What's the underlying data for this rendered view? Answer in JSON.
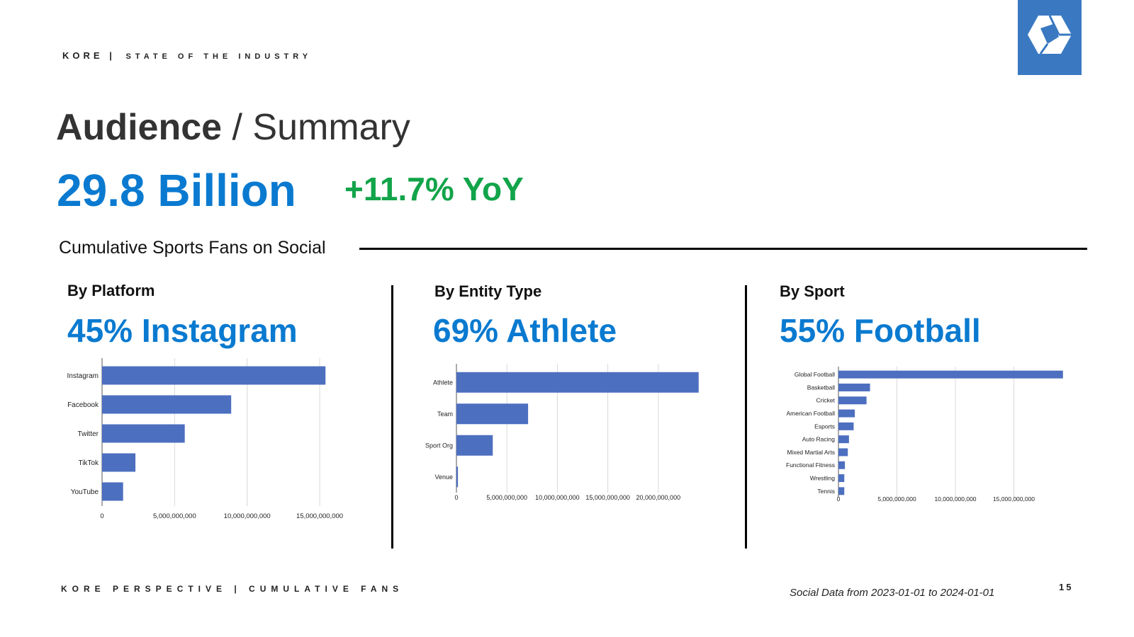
{
  "header": {
    "brand": "KORE",
    "separator": "|",
    "subtitle": "STATE OF THE INDUSTRY"
  },
  "title": {
    "bold": "Audience",
    "rest": " / Summary"
  },
  "headline": {
    "value": "29.8 Billion",
    "change": "+11.7% YoY"
  },
  "subtitle": "Cumulative Sports Fans on Social",
  "sections": [
    {
      "label": "By Platform",
      "highlight": "45% Instagram"
    },
    {
      "label": "By Entity Type",
      "highlight": "69% Athlete"
    },
    {
      "label": "By Sport",
      "highlight": "55% Football"
    }
  ],
  "chart_data": [
    {
      "type": "bar",
      "orientation": "horizontal",
      "title": "By Platform",
      "categories": [
        "Instagram",
        "Facebook",
        "Twitter",
        "TikTok",
        "YouTube"
      ],
      "values": [
        15400000000,
        8900000000,
        5700000000,
        2300000000,
        1450000000
      ],
      "xlim": [
        0,
        17000000000
      ],
      "ticks": [
        0,
        5000000000,
        10000000000,
        15000000000
      ],
      "tick_labels": [
        "0",
        "5,000,000,000",
        "10,000,000,000",
        "15,000,000,000"
      ],
      "color": "#4d6fc0",
      "grid": true
    },
    {
      "type": "bar",
      "orientation": "horizontal",
      "title": "By Entity Type",
      "categories": [
        "Athlete",
        "Team",
        "Sport Org",
        "Venue"
      ],
      "values": [
        24000000000,
        7100000000,
        3600000000,
        150000000
      ],
      "xlim": [
        0,
        25000000000
      ],
      "ticks": [
        0,
        5000000000,
        10000000000,
        15000000000,
        20000000000
      ],
      "tick_labels": [
        "0",
        "5,000,000,000",
        "10,000,000,000",
        "15,000,000,000",
        "20,000,000,000"
      ],
      "color": "#4d6fc0",
      "grid": true
    },
    {
      "type": "bar",
      "orientation": "horizontal",
      "title": "By Sport",
      "categories": [
        "Global Football",
        "Basketball",
        "Cricket",
        "American Football",
        "Esports",
        "Auto Racing",
        "Mixed Martial Arts",
        "Functional Fitness",
        "Wrestling",
        "Tennis"
      ],
      "values": [
        19200000000,
        2700000000,
        2400000000,
        1400000000,
        1300000000,
        900000000,
        800000000,
        550000000,
        500000000,
        500000000
      ],
      "xlim": [
        0,
        20000000000
      ],
      "ticks": [
        0,
        5000000000,
        10000000000,
        15000000000
      ],
      "tick_labels": [
        "0",
        "5,000,000,000",
        "10,000,000,000",
        "15,000,000,000"
      ],
      "color": "#4d6fc0",
      "grid": true
    }
  ],
  "footer": {
    "left": "KORE PERSPECTIVE | CUMULATIVE FANS",
    "source": "Social Data from 2023-01-01 to 2024-01-01",
    "page": "15"
  }
}
